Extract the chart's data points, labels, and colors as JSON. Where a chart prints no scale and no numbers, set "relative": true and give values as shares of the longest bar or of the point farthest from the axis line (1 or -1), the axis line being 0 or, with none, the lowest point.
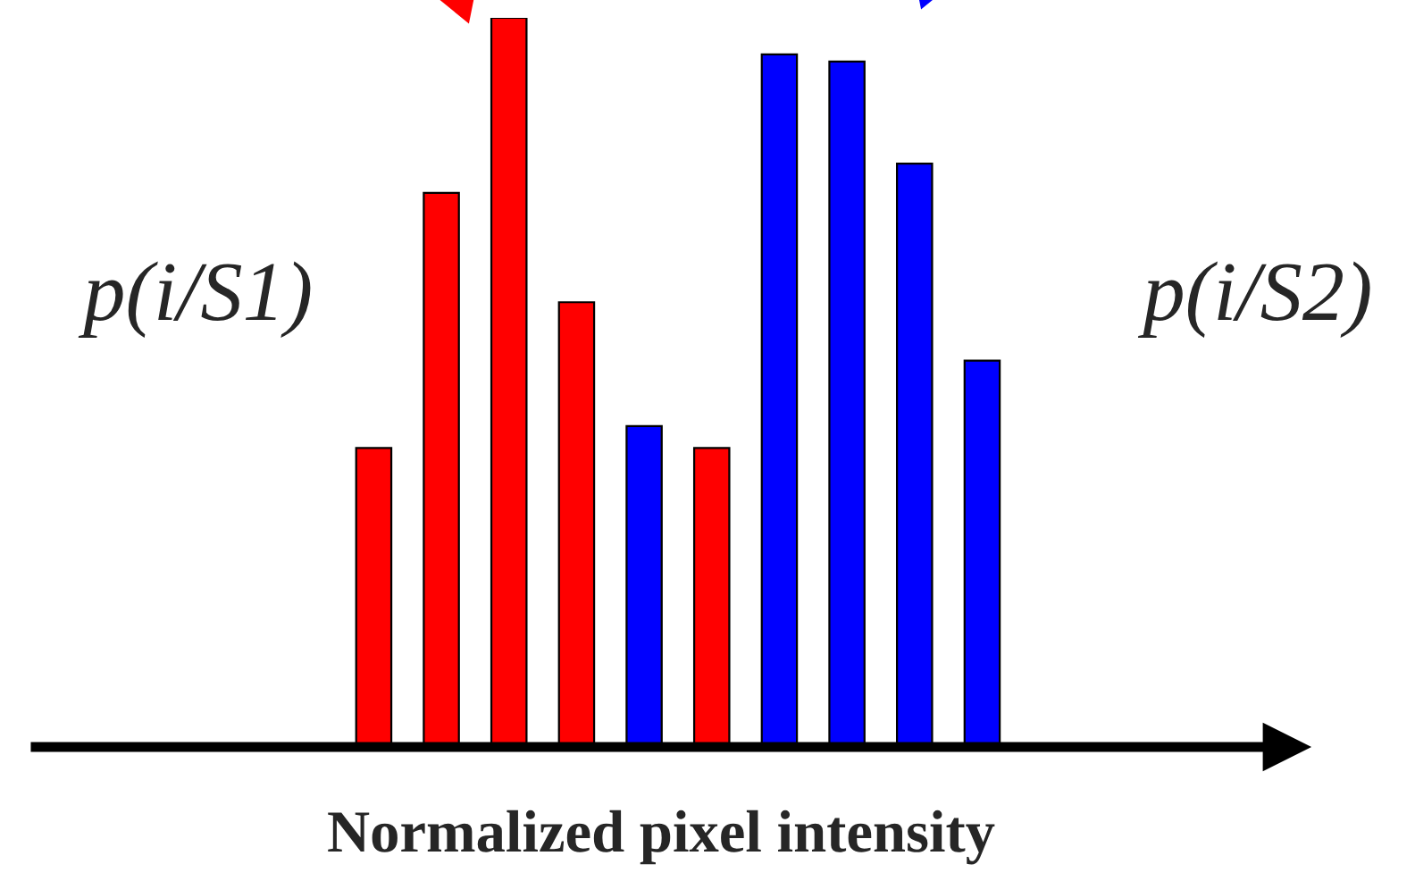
{
  "chart_data": {
    "type": "bar",
    "relative": true,
    "xlabel": "Normalized pixel intensity",
    "legend": false,
    "grid": false,
    "categories": [
      null,
      null,
      null,
      null,
      null,
      null,
      null,
      null,
      null,
      null
    ],
    "values": [
      0.41,
      0.76,
      1.0,
      0.61,
      0.44,
      0.41,
      0.95,
      0.94,
      0.8,
      0.53
    ],
    "colors": [
      "#ff0000",
      "#ff0000",
      "#ff0000",
      "#ff0000",
      "#0000ff",
      "#ff0000",
      "#0000ff",
      "#0000ff",
      "#0000ff",
      "#0000ff"
    ],
    "annotations": [
      "p(i/S1)",
      "p(i/S2)"
    ]
  }
}
